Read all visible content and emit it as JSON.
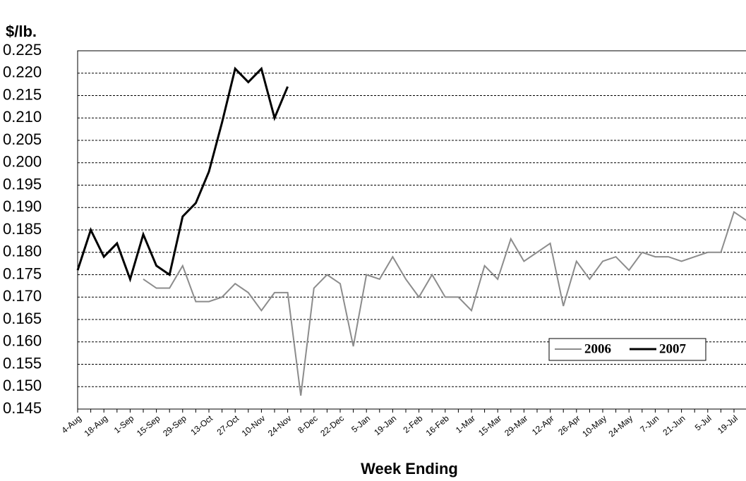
{
  "chart_data": {
    "type": "line",
    "y_axis_label": "$/lb.",
    "x_axis_label": "Week Ending",
    "categories": [
      "4-Aug",
      null,
      "18-Aug",
      null,
      "1-Sep",
      null,
      "15-Sep",
      null,
      "29-Sep",
      null,
      "13-Oct",
      null,
      "27-Oct",
      null,
      "10-Nov",
      null,
      "24-Nov",
      null,
      "8-Dec",
      null,
      "22-Dec",
      null,
      "5-Jan",
      null,
      "19-Jan",
      null,
      "2-Feb",
      null,
      "16-Feb",
      null,
      "1-Mar",
      null,
      "15-Mar",
      null,
      "29-Mar",
      null,
      "12-Apr",
      null,
      "26-Apr",
      null,
      "10-May",
      null,
      "24-May",
      null,
      "7-Jun",
      null,
      "21-Jun",
      null,
      "5-Jul",
      null,
      "19-Jul",
      null
    ],
    "series": [
      {
        "name": "2006",
        "color": "#8c8c8c",
        "values": [
          null,
          null,
          null,
          null,
          null,
          0.174,
          0.172,
          0.172,
          0.177,
          0.169,
          0.169,
          0.17,
          0.173,
          0.171,
          0.167,
          0.171,
          0.171,
          0.148,
          0.172,
          0.175,
          0.173,
          0.159,
          0.175,
          0.174,
          0.179,
          0.174,
          0.17,
          0.175,
          0.17,
          0.17,
          0.167,
          0.177,
          0.174,
          0.183,
          0.178,
          0.18,
          0.182,
          0.168,
          0.178,
          0.174,
          0.178,
          0.179,
          0.176,
          0.18,
          0.179,
          0.179,
          0.178,
          0.179,
          0.18,
          0.18,
          0.189,
          0.187
        ]
      },
      {
        "name": "2007",
        "color": "#000000",
        "values": [
          0.176,
          0.185,
          0.179,
          0.182,
          0.174,
          0.184,
          0.177,
          0.175,
          0.188,
          0.191,
          0.198,
          0.209,
          0.221,
          0.218,
          0.221,
          0.21,
          0.217,
          null,
          null,
          null,
          null,
          null,
          null,
          null,
          null,
          null,
          null,
          null,
          null,
          null,
          null,
          null,
          null,
          null,
          null,
          null,
          null,
          null,
          null,
          null,
          null,
          null,
          null,
          null,
          null,
          null,
          null,
          null,
          null,
          null,
          null,
          null
        ]
      }
    ],
    "ylim": [
      0.145,
      0.225
    ],
    "yticks": [
      0.145,
      {
        "value": 0.15,
        "label": "0.150"
      },
      0.155,
      {
        "value": 0.16,
        "label": "0.160"
      },
      0.165,
      {
        "value": 0.17,
        "label": "0.170"
      },
      0.175,
      {
        "value": 0.18,
        "label": "0.180"
      },
      0.185,
      {
        "value": 0.19,
        "label": "0.190"
      },
      0.195,
      {
        "value": 0.2,
        "label": "0.200"
      },
      0.205,
      {
        "value": 0.21,
        "label": "0.210"
      },
      0.215,
      {
        "value": 0.22,
        "label": "0.220"
      },
      0.225
    ],
    "grid": true
  }
}
